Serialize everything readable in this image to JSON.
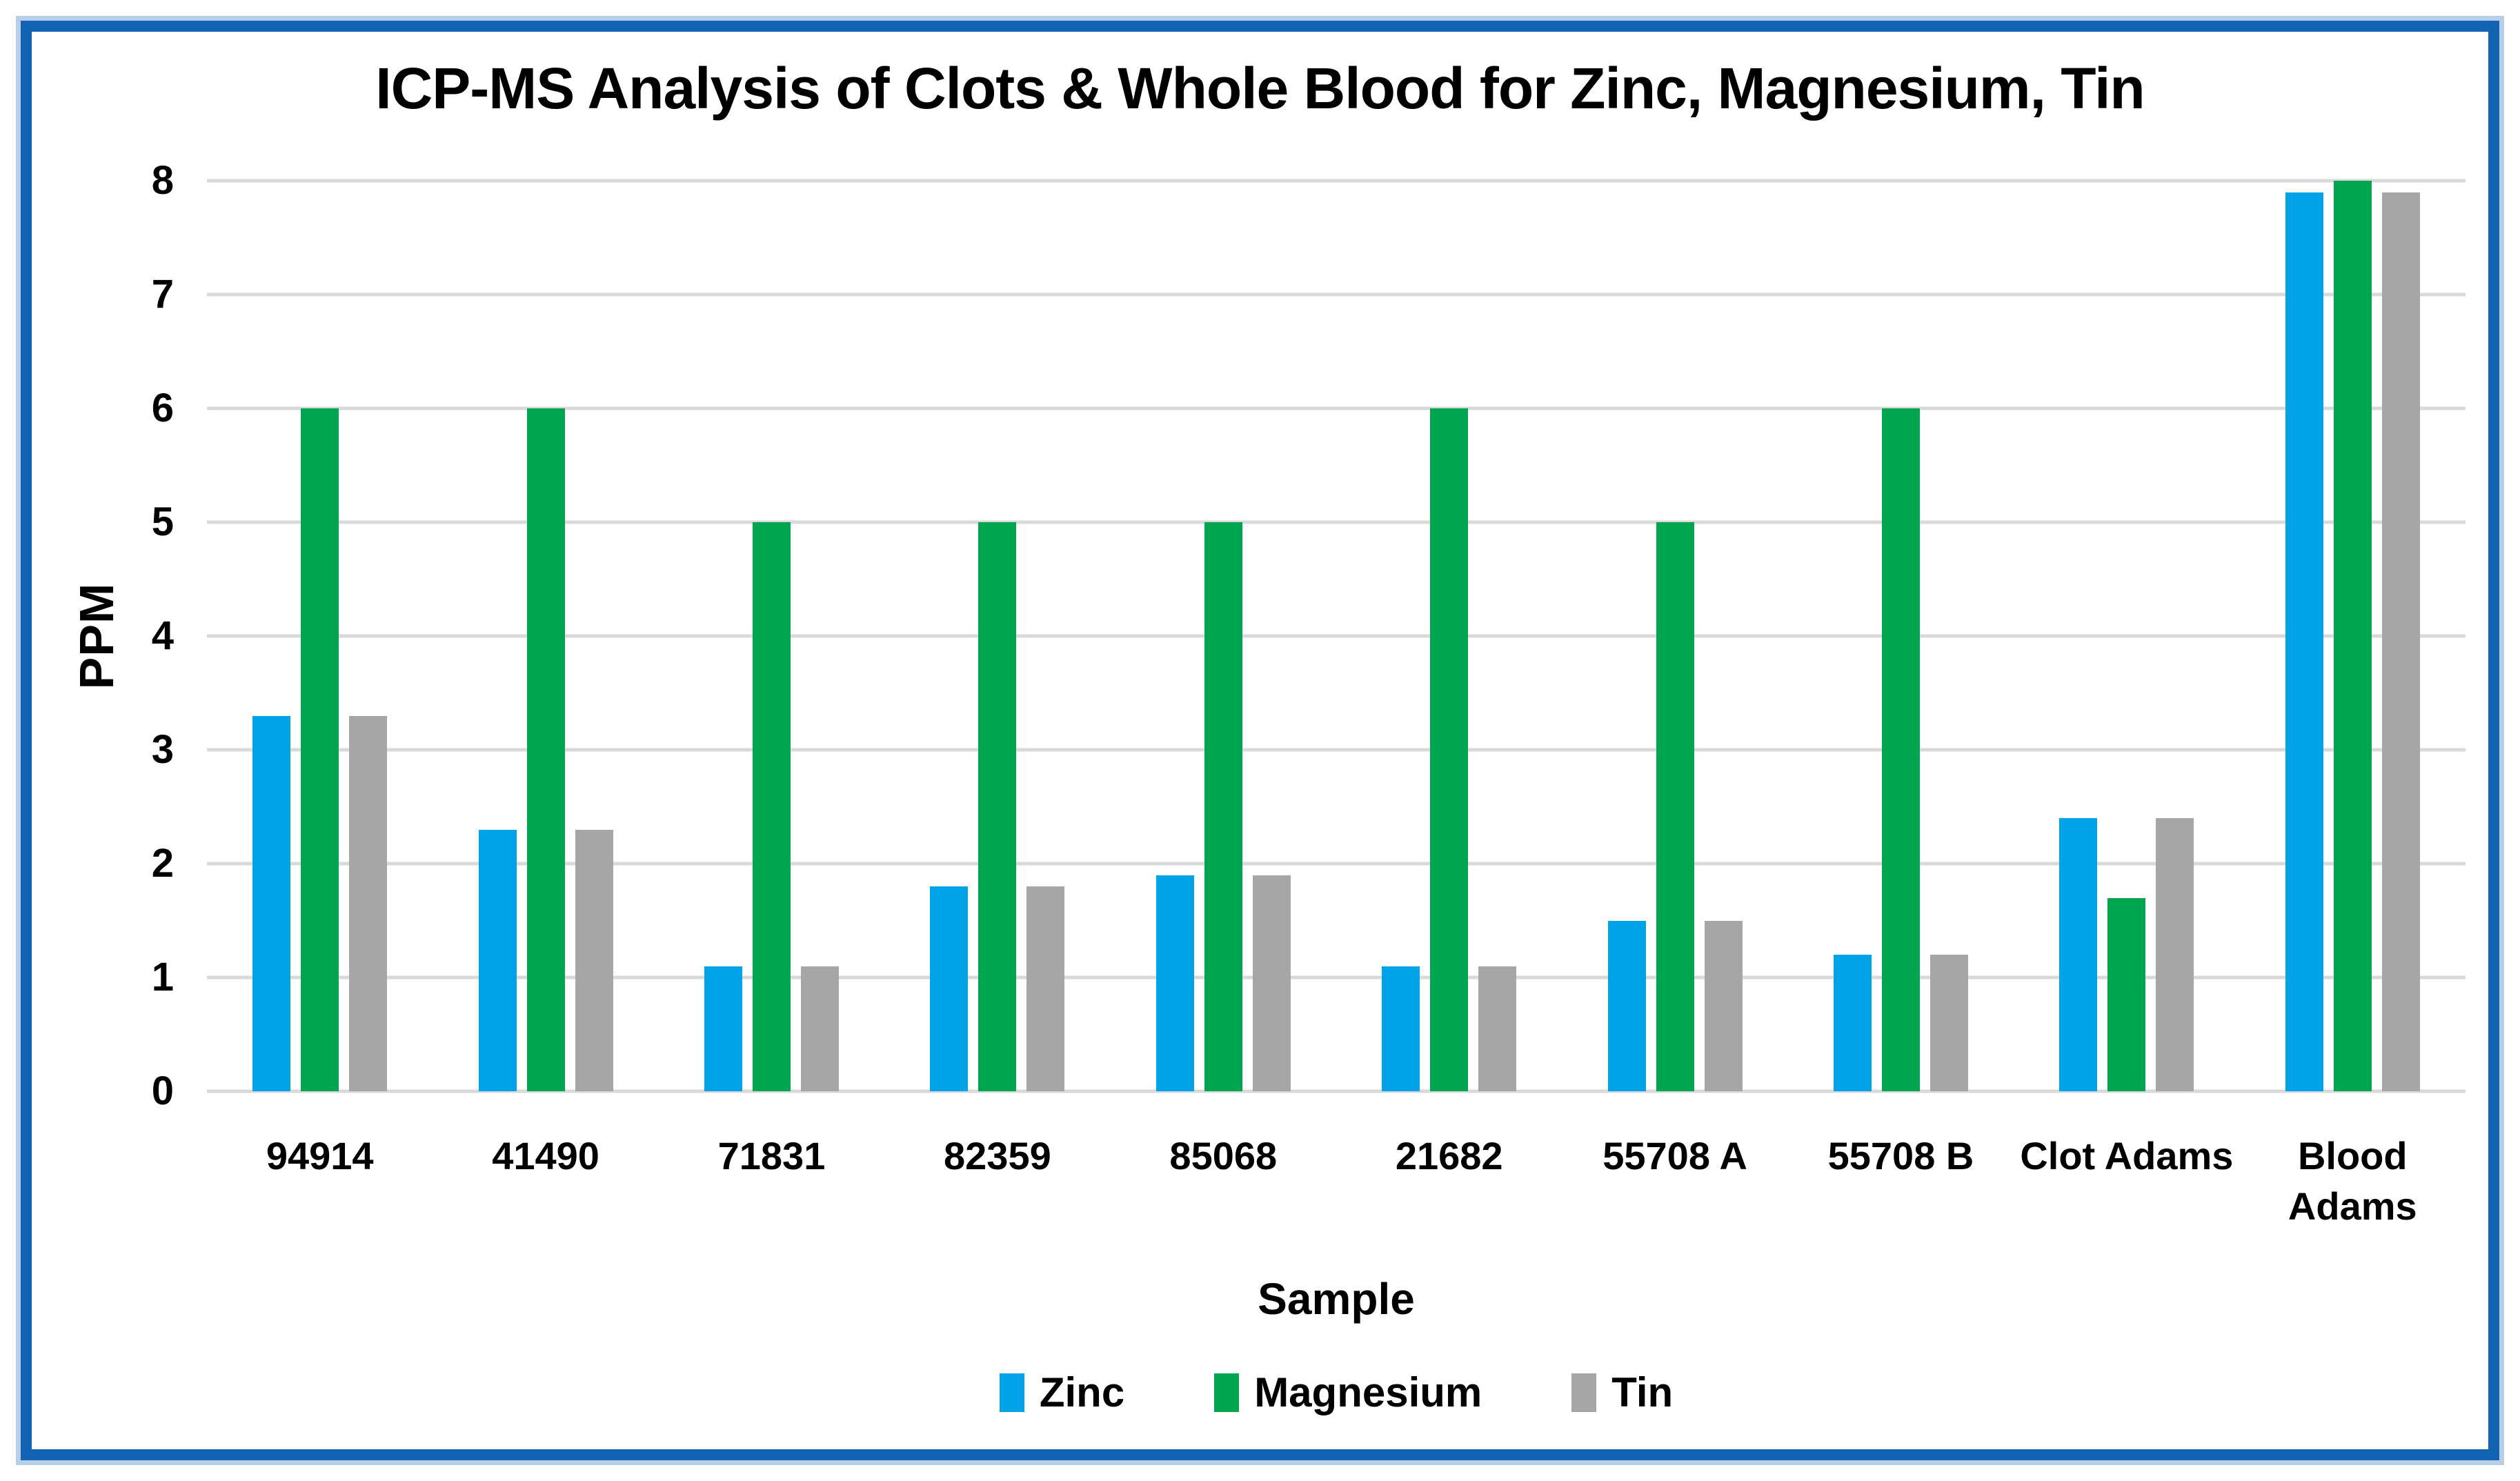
{
  "page": {
    "background": "#ffffff",
    "frame_border_color": "#1264b2",
    "frame_outer_glow_color": "#b9cfe9",
    "text_color": "#000000"
  },
  "chart_data": {
    "type": "bar",
    "title": "ICP-MS Analysis of Clots & Whole Blood for Zinc, Magnesium, Tin",
    "xlabel": "Sample",
    "ylabel": "PPM",
    "ylim": [
      0,
      8
    ],
    "yticks": [
      0,
      1,
      2,
      3,
      4,
      5,
      6,
      7,
      8
    ],
    "grid": "horizontal gridlines every 1 PPM",
    "gridline_color": "#d9d9d9",
    "legend_position": "bottom",
    "categories": [
      "94914",
      "41490",
      "71831",
      "82359",
      "85068",
      "21682",
      "55708 A",
      "55708 B",
      "Clot Adams",
      "Blood Adams"
    ],
    "category_label_lines": [
      [
        "94914"
      ],
      [
        "41490"
      ],
      [
        "71831"
      ],
      [
        "82359"
      ],
      [
        "85068"
      ],
      [
        "21682"
      ],
      [
        "55708 A"
      ],
      [
        "55708 B"
      ],
      [
        "Clot Adams"
      ],
      [
        "Blood",
        "Adams"
      ]
    ],
    "series": [
      {
        "name": "Zinc",
        "color": "#00a2e8",
        "values": [
          3.3,
          2.3,
          1.1,
          1.8,
          1.9,
          1.1,
          1.5,
          1.2,
          2.4,
          7.9
        ]
      },
      {
        "name": "Magnesium",
        "color": "#00a550",
        "values": [
          6.0,
          6.0,
          5.0,
          5.0,
          5.0,
          6.0,
          5.0,
          6.0,
          1.7,
          8.0
        ]
      },
      {
        "name": "Tin",
        "color": "#a6a6a6",
        "values": [
          3.3,
          2.3,
          1.1,
          1.8,
          1.9,
          1.1,
          1.5,
          1.2,
          2.4,
          7.9
        ]
      }
    ]
  }
}
